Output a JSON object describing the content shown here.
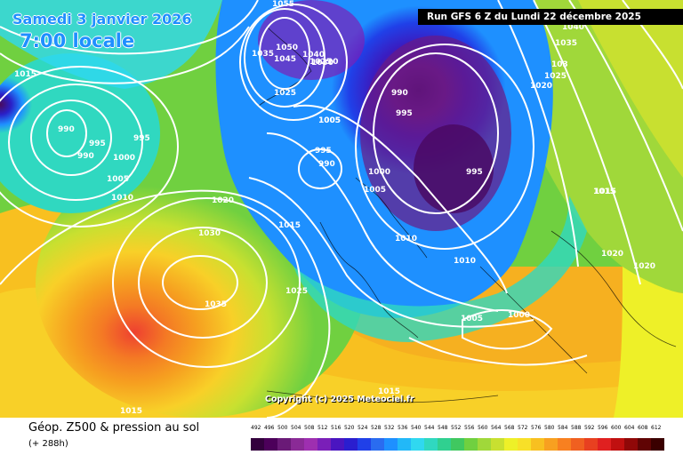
{
  "header": {
    "date_text": "Samedi 3 janvier 2026",
    "time_text": "7:00 locale",
    "run_text": "Run GFS 6 Z du Lundi 22 décembre 2025"
  },
  "map": {
    "copyright": "Copyright (c) 2025 Meteociel.fr",
    "isobar_labels": [
      "1015",
      "990",
      "995",
      "995",
      "990",
      "1000",
      "1005",
      "1010",
      "1020",
      "1030",
      "1035",
      "1015",
      "1025",
      "1005",
      "1050",
      "1045",
      "1025",
      "1055",
      "1035",
      "1040",
      "1030",
      "1025",
      "20",
      "1005",
      "995",
      "990",
      "990",
      "995",
      "1000",
      "1005",
      "1010",
      "1010",
      "995",
      "1015",
      "1040",
      "1035",
      "103",
      "1020",
      "1025",
      "1015",
      "1020",
      "1020",
      "1005",
      "1000",
      "1015",
      "1015"
    ]
  },
  "legend": {
    "title": "Géop. Z500 & pression au sol",
    "subtitle": "(+ 288h)",
    "scale_values": [
      "492",
      "496",
      "500",
      "504",
      "508",
      "512",
      "516",
      "520",
      "524",
      "528",
      "532",
      "536",
      "540",
      "544",
      "548",
      "552",
      "556",
      "560",
      "564",
      "568",
      "572",
      "576",
      "580",
      "584",
      "588",
      "592",
      "596",
      "600",
      "604",
      "608",
      "612"
    ],
    "scale_colors": [
      "#33003d",
      "#4c005a",
      "#6a1a77",
      "#8a2a96",
      "#9e2fb0",
      "#7a1fb8",
      "#4a15c0",
      "#2a1ecf",
      "#2040e8",
      "#2a6cf0",
      "#1e90ff",
      "#22b8f8",
      "#30d8f0",
      "#30d8c0",
      "#30d090",
      "#40c860",
      "#70d040",
      "#a0d83a",
      "#c8e030",
      "#eef028",
      "#f8e028",
      "#f8c020",
      "#f8a020",
      "#f88020",
      "#f06020",
      "#e84020",
      "#e02020",
      "#c01010",
      "#900808",
      "#600404",
      "#3a0000"
    ]
  }
}
